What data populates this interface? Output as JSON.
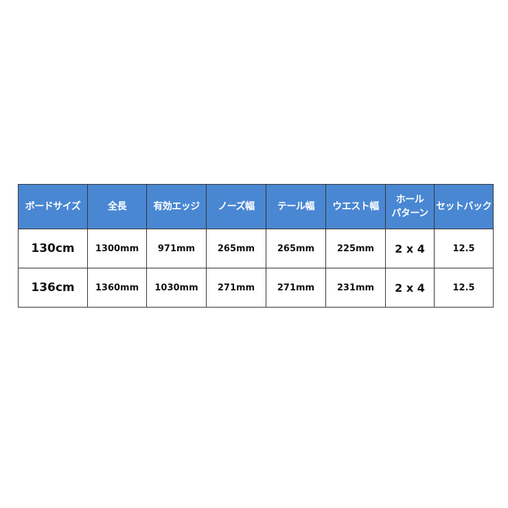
{
  "colors": {
    "header_bg": "#4a87d3",
    "header_text": "#ffffff"
  },
  "headers": [
    "ボードサイズ",
    "全長",
    "有効エッジ",
    "ノーズ幅",
    "テール幅",
    "ウエスト幅",
    "ホール\nパターン",
    "セットバック"
  ],
  "rows": [
    [
      "130cm",
      "1300mm",
      "971mm",
      "265mm",
      "265mm",
      "225mm",
      "2 x 4",
      "12.5"
    ],
    [
      "136cm",
      "1360mm",
      "1030mm",
      "271mm",
      "271mm",
      "231mm",
      "2 x 4",
      "12.5"
    ]
  ]
}
